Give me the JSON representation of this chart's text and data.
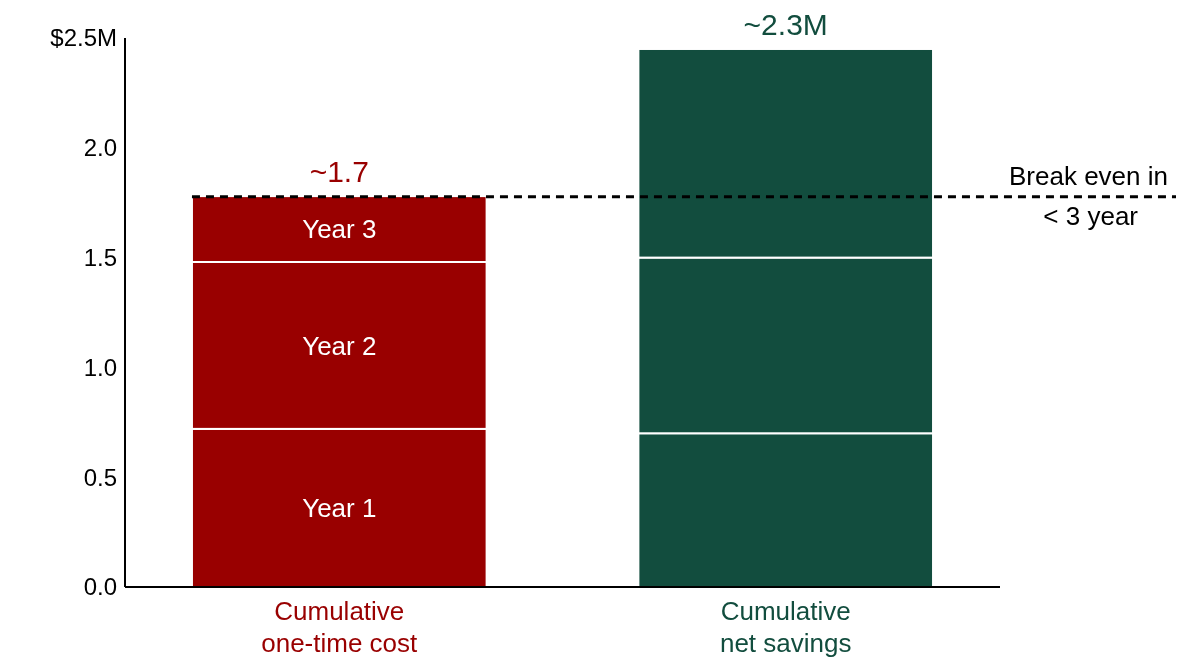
{
  "chart_data": {
    "type": "bar",
    "stacked": true,
    "categories": [
      "Cumulative one-time cost",
      "Cumulative net savings"
    ],
    "series": [
      {
        "name": "Year 1",
        "colors": [
          "#990000",
          "#124d3e"
        ],
        "values": [
          0.72,
          0.7
        ]
      },
      {
        "name": "Year 2",
        "colors": [
          "#990000",
          "#124d3e"
        ],
        "values": [
          0.76,
          0.8
        ]
      },
      {
        "name": "Year 3",
        "colors": [
          "#990000",
          "#124d3e"
        ],
        "values": [
          0.3,
          0.95
        ]
      }
    ],
    "totals": [
      "~1.7",
      "~2.3M"
    ],
    "ylim": [
      0,
      2.5
    ],
    "yticks": [
      {
        "value": 0,
        "label": "0.0"
      },
      0.5,
      {
        "value": 1,
        "label": "1.0"
      },
      1.5,
      {
        "value": 2,
        "label": "2.0"
      },
      {
        "value": 2.5,
        "label": "$2.5M"
      }
    ],
    "ref_lines": [
      {
        "axis": "y",
        "value": 1.777,
        "label": "Break even in < 3 year",
        "color": "#000000",
        "line_style": "dashed"
      }
    ],
    "grid": false
  }
}
